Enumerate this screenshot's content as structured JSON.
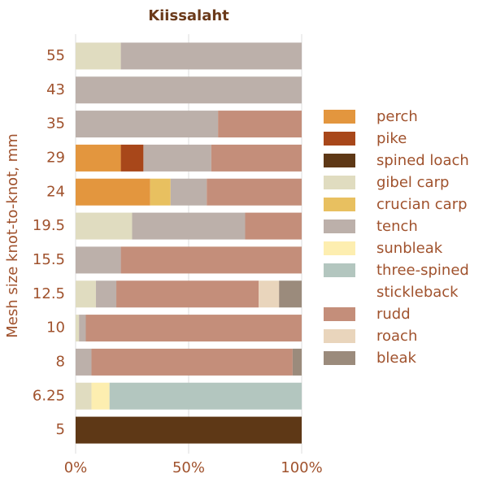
{
  "chart_data": {
    "type": "stacked-barh",
    "title": "Kiissalaht",
    "ylabel": "Mesh size knot-to-knot, mm",
    "categories": [
      "55",
      "43",
      "35",
      "29",
      "24",
      "19.5",
      "15.5",
      "12.5",
      "10",
      "8",
      "6.25",
      "5"
    ],
    "xlim": [
      0,
      100
    ],
    "xticks": [
      {
        "value": 0,
        "label": "0%"
      },
      {
        "value": 50,
        "label": "50%"
      },
      {
        "value": 100,
        "label": "100%"
      }
    ],
    "legend": "right",
    "series": [
      {
        "name": "perch",
        "color": "#e3963e",
        "values": [
          0,
          0,
          0,
          20,
          33,
          0,
          0,
          0,
          0,
          0,
          0,
          0
        ]
      },
      {
        "name": "pike",
        "color": "#a8471a",
        "values": [
          0,
          0,
          0,
          10,
          0,
          0,
          0,
          0,
          0,
          0,
          0,
          0
        ]
      },
      {
        "name": "spined loach",
        "color": "#5e3816",
        "values": [
          0,
          0,
          0,
          0,
          0,
          0,
          0,
          0,
          0,
          0,
          0,
          100
        ]
      },
      {
        "name": "gibel carp",
        "color": "#e0dcc0",
        "values": [
          20,
          0,
          0,
          0,
          0,
          25,
          0,
          9,
          1.5,
          0,
          7,
          0
        ]
      },
      {
        "name": "crucian carp",
        "color": "#e8c060",
        "values": [
          0,
          0,
          0,
          0,
          9,
          0,
          0,
          0,
          0,
          0,
          0,
          0
        ]
      },
      {
        "name": "tench",
        "color": "#bcb0aa",
        "values": [
          80,
          100,
          63,
          30,
          16,
          50,
          20,
          9,
          3,
          7,
          0,
          0
        ]
      },
      {
        "name": "sunbleak",
        "color": "#fdeeb0",
        "values": [
          0,
          0,
          0,
          0,
          0,
          0,
          0,
          0,
          0,
          0,
          8,
          0
        ]
      },
      {
        "name": "three-spined stickleback",
        "color": "#b3c6bf",
        "values": [
          0,
          0,
          0,
          0,
          0,
          0,
          0,
          0,
          0,
          0,
          85,
          0
        ]
      },
      {
        "name": "rudd",
        "color": "#c48e7a",
        "values": [
          0,
          0,
          37,
          40,
          42,
          25,
          80,
          63,
          95.5,
          89,
          0,
          0
        ]
      },
      {
        "name": "roach",
        "color": "#e9d5bc",
        "values": [
          0,
          0,
          0,
          0,
          0,
          0,
          0,
          9,
          0,
          0,
          0,
          0
        ]
      },
      {
        "name": "bleak",
        "color": "#9b8b7c",
        "values": [
          0,
          0,
          0,
          0,
          0,
          0,
          0,
          10,
          0,
          4,
          0,
          0
        ]
      }
    ]
  }
}
